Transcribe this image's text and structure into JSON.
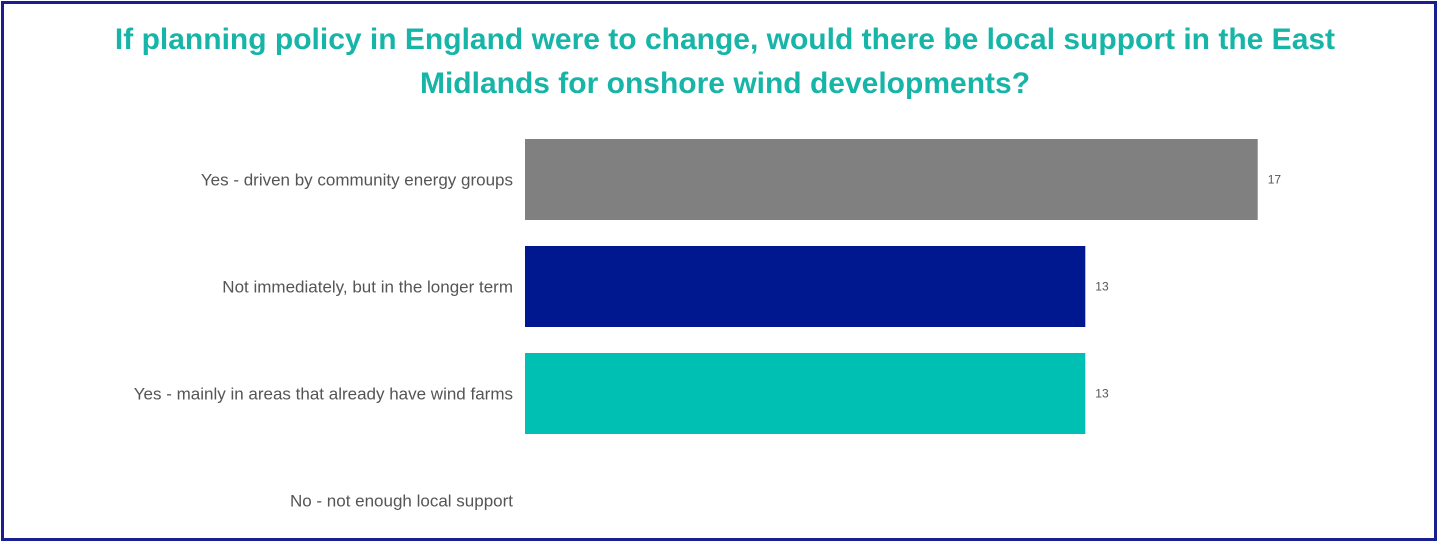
{
  "chart_data": {
    "type": "bar",
    "orientation": "horizontal",
    "title": "If planning policy in England were to change, would there be local support in the East Midlands for onshore wind developments?",
    "categories": [
      "Yes - driven by community energy groups",
      "Not immediately, but in the longer term",
      "Yes - mainly in areas that already have wind farms",
      "No - not enough local support"
    ],
    "values": [
      17,
      13,
      13,
      null
    ],
    "colors": [
      "#808080",
      "#00188f",
      "#00bfb3",
      "#cccccc"
    ],
    "xlim": [
      0,
      20
    ],
    "grid": false,
    "legend": "none",
    "value_labels": [
      "17",
      "13",
      "13",
      ""
    ]
  }
}
